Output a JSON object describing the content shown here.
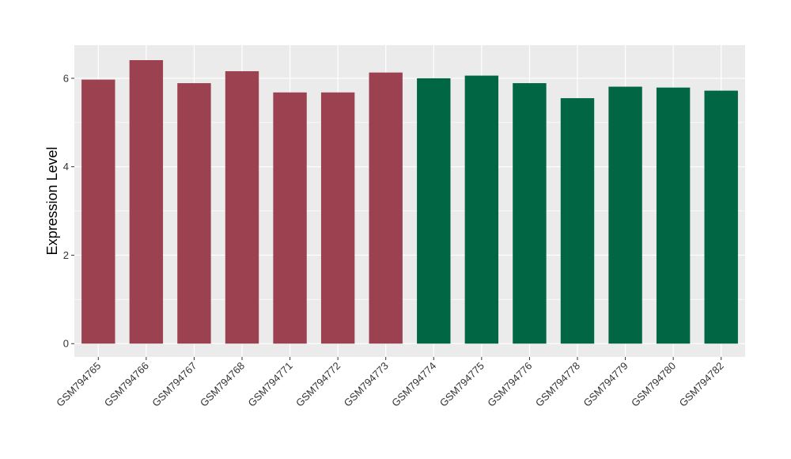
{
  "chart_data": {
    "type": "bar",
    "title": "",
    "xlabel": "",
    "ylabel": "Expression Level",
    "ylim": [
      -0.3,
      6.75
    ],
    "yticks": [
      0,
      2,
      4,
      6
    ],
    "grid": true,
    "legend": "none",
    "categories": [
      "GSM794765",
      "GSM794766",
      "GSM794767",
      "GSM794768",
      "GSM794771",
      "GSM794772",
      "GSM794773",
      "GSM794774",
      "GSM794775",
      "GSM794776",
      "GSM794778",
      "GSM794779",
      "GSM794780",
      "GSM794782"
    ],
    "values": [
      5.97,
      6.41,
      5.89,
      6.16,
      5.68,
      5.68,
      6.13,
      6.0,
      6.06,
      5.89,
      5.55,
      5.81,
      5.79,
      5.72
    ],
    "bar_colors": [
      "#9b4150",
      "#9b4150",
      "#9b4150",
      "#9b4150",
      "#9b4150",
      "#9b4150",
      "#9b4150",
      "#006644",
      "#006644",
      "#006644",
      "#006644",
      "#006644",
      "#006644",
      "#006644"
    ]
  }
}
